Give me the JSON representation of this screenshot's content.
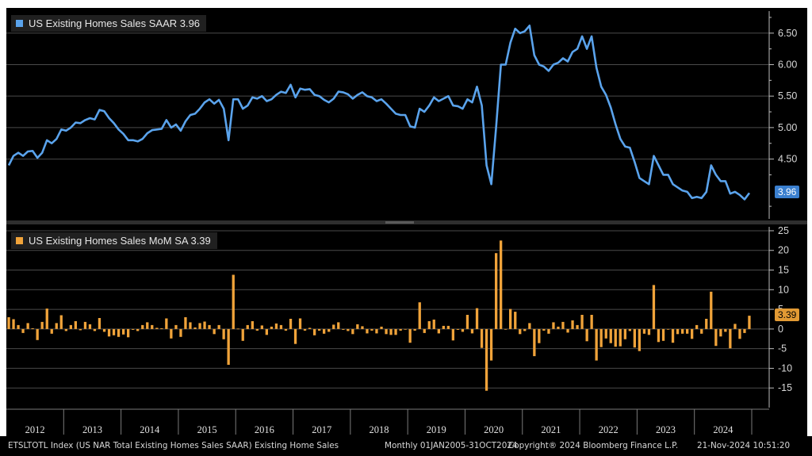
{
  "colors": {
    "upper_series": "#5aa3ec",
    "lower_series": "#f0a33a",
    "grid": "#4a4a4a",
    "background": "#000000"
  },
  "footer": {
    "source": "ETSLTOTL Index (US NAR Total Existing Homes Sales SAAR) Existing Home Sales",
    "range": "Monthly 01JAN2005-31OCT2024",
    "copyright": "Copyright® 2024 Bloomberg Finance L.P.",
    "timestamp": "21-Nov-2024 10:51:20"
  },
  "chart_data": [
    {
      "type": "line",
      "legend": "US Existing Homes Sales SAAR 3.96",
      "last_value_label": "3.96",
      "ylim": [
        3.55,
        6.85
      ],
      "yticks": [
        4.5,
        5.0,
        5.5,
        6.0,
        6.5
      ],
      "ytick_labels": [
        "4.50",
        "5.00",
        "5.50",
        "6.00",
        "6.50"
      ],
      "grid": true,
      "legend_position": "top-left",
      "x_start": "2012-01",
      "series": [
        {
          "values": [
            4.4,
            4.55,
            4.6,
            4.55,
            4.62,
            4.63,
            4.52,
            4.6,
            4.8,
            4.75,
            4.82,
            4.97,
            4.95,
            5.0,
            5.08,
            5.07,
            5.12,
            5.15,
            5.13,
            5.28,
            5.26,
            5.15,
            5.07,
            4.97,
            4.9,
            4.8,
            4.8,
            4.78,
            4.82,
            4.91,
            4.96,
            4.97,
            4.98,
            5.12,
            5.0,
            5.05,
            4.95,
            5.1,
            5.2,
            5.22,
            5.3,
            5.4,
            5.45,
            5.38,
            5.44,
            5.3,
            4.8,
            5.45,
            5.45,
            5.3,
            5.35,
            5.48,
            5.46,
            5.5,
            5.42,
            5.45,
            5.52,
            5.57,
            5.55,
            5.68,
            5.48,
            5.62,
            5.6,
            5.61,
            5.52,
            5.5,
            5.44,
            5.4,
            5.46,
            5.57,
            5.56,
            5.53,
            5.46,
            5.52,
            5.56,
            5.5,
            5.48,
            5.42,
            5.45,
            5.38,
            5.3,
            5.22,
            5.2,
            5.2,
            5.02,
            5.0,
            5.3,
            5.25,
            5.35,
            5.48,
            5.42,
            5.46,
            5.5,
            5.35,
            5.34,
            5.3,
            5.45,
            5.4,
            5.65,
            5.35,
            4.4,
            4.1,
            5.0,
            6.0,
            6.0,
            6.35,
            6.57,
            6.5,
            6.53,
            6.62,
            6.15,
            6.0,
            5.97,
            5.9,
            6.0,
            6.03,
            6.1,
            6.05,
            6.2,
            6.25,
            6.45,
            6.25,
            6.45,
            5.95,
            5.65,
            5.52,
            5.32,
            5.05,
            4.82,
            4.7,
            4.68,
            4.45,
            4.2,
            4.15,
            4.1,
            4.55,
            4.4,
            4.25,
            4.25,
            4.1,
            4.05,
            4.0,
            3.98,
            3.88,
            3.9,
            3.88,
            3.98,
            4.4,
            4.25,
            4.15,
            4.15,
            3.95,
            3.98,
            3.93,
            3.86,
            3.96
          ]
        }
      ]
    },
    {
      "type": "bar",
      "legend": "US Existing Homes Sales MoM SA 3.39",
      "last_value_label": "3.39",
      "ylim": [
        -20,
        26
      ],
      "yticks": [
        -15,
        -10,
        -5,
        0,
        5,
        10,
        15,
        20,
        25
      ],
      "ytick_labels": [
        "-15",
        "-10",
        "-5",
        "0",
        "5",
        "10",
        "15",
        "20",
        "25"
      ],
      "grid": true,
      "legend_position": "top-left",
      "x_start": "2012-01",
      "x_tick_labels": [
        "2012",
        "2013",
        "2014",
        "2015",
        "2016",
        "2017",
        "2018",
        "2019",
        "2020",
        "2021",
        "2022",
        "2023",
        "2024"
      ],
      "series": [
        {
          "values": [
            3.0,
            2.5,
            1.0,
            -1.0,
            1.5,
            0.2,
            -2.8,
            1.8,
            5.2,
            -1.2,
            1.5,
            3.5,
            -0.5,
            1.0,
            2.0,
            -0.3,
            1.8,
            1.2,
            -0.5,
            2.8,
            -0.7,
            -1.9,
            -1.6,
            -2.0,
            -1.4,
            -2.1,
            -0.2,
            -0.5,
            1.0,
            1.7,
            1.0,
            0.3,
            0.2,
            2.7,
            -2.4,
            1.0,
            -2.0,
            3.0,
            1.7,
            0.4,
            1.5,
            1.9,
            1.0,
            -1.3,
            1.0,
            -2.6,
            -9.1,
            13.8,
            0.1,
            -3.0,
            1.0,
            2.0,
            -0.4,
            0.9,
            -1.5,
            0.6,
            1.4,
            1.0,
            -0.4,
            2.6,
            -3.8,
            2.7,
            -0.4,
            0.3,
            -1.6,
            -0.4,
            -1.2,
            -0.7,
            1.1,
            1.7,
            -0.2,
            -0.5,
            -1.3,
            1.2,
            0.7,
            -1.1,
            -0.4,
            -1.1,
            0.6,
            -1.3,
            -1.5,
            -1.5,
            -0.4,
            0.0,
            -3.5,
            -0.4,
            6.8,
            -1.0,
            2.0,
            2.4,
            -1.1,
            0.8,
            0.8,
            -2.9,
            -0.2,
            -0.7,
            3.6,
            -1.1,
            5.3,
            -4.8,
            -15.7,
            -8.0,
            19.3,
            22.5,
            0.0,
            5.1,
            4.4,
            -1.3,
            -0.5,
            1.5,
            -6.9,
            -3.6,
            -0.4,
            -1.2,
            1.7,
            0.6,
            1.8,
            -0.9,
            2.2,
            1.0,
            3.6,
            -3.1,
            3.6,
            -8.0,
            -4.6,
            -2.4,
            -3.6,
            -4.5,
            -4.4,
            -2.6,
            -0.5,
            -4.7,
            -5.6,
            -1.2,
            -1.5,
            11.2,
            -3.3,
            -3.0,
            0.0,
            -3.5,
            -1.3,
            -1.2,
            -1.2,
            -2.5,
            1.0,
            -1.2,
            2.6,
            9.5,
            -4.3,
            -1.9,
            -0.7,
            -4.9,
            1.3,
            -2.5,
            -1.0,
            3.39
          ]
        }
      ]
    }
  ]
}
